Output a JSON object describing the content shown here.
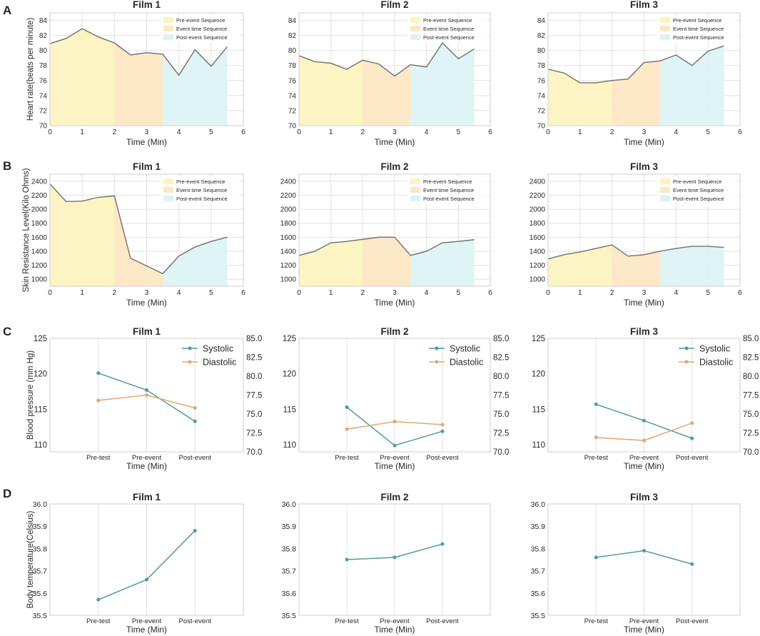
{
  "colors": {
    "pre": "#fdf3c0",
    "event": "#fde7c4",
    "post": "#ddf3f3",
    "hr_line": "#6f6f6f",
    "systolic": "#4e9c9a",
    "diastolic": "#e3a86c",
    "grid": "#e2e2e2",
    "frame": "#cfcfcf"
  },
  "panel_letters": [
    "A",
    "B",
    "C",
    "D"
  ],
  "legend_ab": [
    "Pre-event Sequence",
    "Event time Sequence",
    "Post-event Sequence"
  ],
  "chart_data": [
    {
      "id": "A",
      "type": "area",
      "ylabel": "Heart rate(beats per minute)",
      "xlabel": "Time (Min)",
      "xlim": [
        0,
        6
      ],
      "ylim": [
        70,
        85
      ],
      "xticks": [
        0,
        1,
        2,
        3,
        4,
        5,
        6
      ],
      "yticks": [
        70,
        72,
        74,
        76,
        78,
        80,
        82,
        84
      ],
      "ytick_labels": [
        "70",
        "72",
        "74",
        "76",
        "78",
        "80",
        "82",
        "84"
      ],
      "phases": [
        [
          0,
          2
        ],
        [
          2,
          3.5
        ],
        [
          3.5,
          5.5
        ]
      ],
      "panels": [
        {
          "title": "Film 1",
          "x": [
            0,
            0.5,
            1,
            1.5,
            2,
            2.5,
            3,
            3.5,
            4,
            4.5,
            5,
            5.5
          ],
          "y": [
            80.9,
            81.6,
            82.9,
            81.8,
            81.0,
            79.4,
            79.7,
            79.5,
            76.7,
            80.1,
            77.9,
            80.5
          ]
        },
        {
          "title": "Film 2",
          "x": [
            0,
            0.5,
            1,
            1.5,
            2,
            2.5,
            3,
            3.5,
            4,
            4.5,
            5,
            5.5
          ],
          "y": [
            79.3,
            78.5,
            78.3,
            77.5,
            78.7,
            78.2,
            76.6,
            78.1,
            77.8,
            81.0,
            78.9,
            80.2
          ]
        },
        {
          "title": "Film 3",
          "x": [
            0,
            0.5,
            1,
            1.5,
            2,
            2.5,
            3,
            3.5,
            4,
            4.5,
            5,
            5.5
          ],
          "y": [
            77.5,
            77.0,
            75.7,
            75.7,
            76.0,
            76.2,
            78.4,
            78.6,
            79.4,
            78.0,
            79.9,
            80.6
          ]
        }
      ]
    },
    {
      "id": "B",
      "type": "area",
      "ylabel": "Skin Resistance Level(Kilo Ohms)",
      "xlabel": "Time (Min)",
      "xlim": [
        0,
        6
      ],
      "ylim": [
        900,
        2500
      ],
      "xticks": [
        0,
        1,
        2,
        3,
        4,
        5,
        6
      ],
      "yticks": [
        1000,
        1200,
        1400,
        1600,
        1800,
        2000,
        2200,
        2400
      ],
      "ytick_labels": [
        "1000",
        "1200",
        "1400",
        "1600",
        "1800",
        "2000",
        "2200",
        "2400"
      ],
      "phases": [
        [
          0,
          2
        ],
        [
          2,
          3.5
        ],
        [
          3.5,
          5.5
        ]
      ],
      "panels": [
        {
          "title": "Film 1",
          "x": [
            0,
            0.5,
            1,
            1.5,
            2,
            2.5,
            3,
            3.5,
            4,
            4.5,
            5,
            5.5
          ],
          "y": [
            2360,
            2110,
            2115,
            2170,
            2190,
            1300,
            1190,
            1080,
            1330,
            1460,
            1540,
            1600
          ]
        },
        {
          "title": "Film 2",
          "x": [
            0,
            0.5,
            1,
            1.5,
            2,
            2.5,
            3,
            3.5,
            4,
            4.5,
            5,
            5.5
          ],
          "y": [
            1340,
            1400,
            1520,
            1540,
            1570,
            1600,
            1600,
            1340,
            1400,
            1520,
            1540,
            1565
          ]
        },
        {
          "title": "Film 3",
          "x": [
            0,
            0.5,
            1,
            1.5,
            2,
            2.5,
            3,
            3.5,
            4,
            4.5,
            5,
            5.5
          ],
          "y": [
            1290,
            1350,
            1390,
            1440,
            1490,
            1330,
            1350,
            1400,
            1440,
            1470,
            1470,
            1455
          ]
        }
      ]
    },
    {
      "id": "C",
      "type": "line",
      "ylabel": "Blood pressure (mm Hg)",
      "xlabel": "Time (Min)",
      "categories": [
        "Pre-test",
        "Pre-event",
        "Post-event"
      ],
      "ylim": [
        109,
        125
      ],
      "yticks": [
        110,
        115,
        120,
        125
      ],
      "ytick_labels": [
        "110",
        "115",
        "120",
        "125"
      ],
      "ylim2": [
        70,
        85
      ],
      "yticks2": [
        70,
        72.5,
        75,
        77.5,
        80,
        82.5,
        85
      ],
      "ytick_labels2": [
        "70.0",
        "72.5",
        "75.0",
        "77.5",
        "80.0",
        "82.5",
        "85.0"
      ],
      "legend": [
        "Systolic",
        "Diastolic"
      ],
      "panels": [
        {
          "title": "Film 1",
          "systolic": [
            120.1,
            117.7,
            113.3
          ],
          "diastolic": [
            76.8,
            77.5,
            75.8
          ]
        },
        {
          "title": "Film 2",
          "systolic": [
            115.3,
            109.9,
            111.9
          ],
          "diastolic": [
            73.0,
            74.0,
            73.6
          ]
        },
        {
          "title": "Film 3",
          "systolic": [
            115.7,
            113.4,
            110.9
          ],
          "diastolic": [
            71.9,
            71.5,
            73.8
          ]
        }
      ]
    },
    {
      "id": "D",
      "type": "line",
      "ylabel": "Body temperature(Celsius)",
      "xlabel": "Time (Min)",
      "categories": [
        "Pre-test",
        "Pre-event",
        "Post-event"
      ],
      "ylim": [
        35.5,
        36.0
      ],
      "yticks": [
        35.5,
        35.6,
        35.7,
        35.8,
        35.9,
        36.0
      ],
      "ytick_labels": [
        "35.5",
        "35.6",
        "35.7",
        "35.8",
        "35.9",
        "36.0"
      ],
      "panels": [
        {
          "title": "Film 1",
          "values": [
            35.57,
            35.66,
            35.88
          ]
        },
        {
          "title": "Film 2",
          "values": [
            35.75,
            35.76,
            35.82
          ]
        },
        {
          "title": "Film 3",
          "values": [
            35.76,
            35.79,
            35.73
          ]
        }
      ]
    }
  ]
}
